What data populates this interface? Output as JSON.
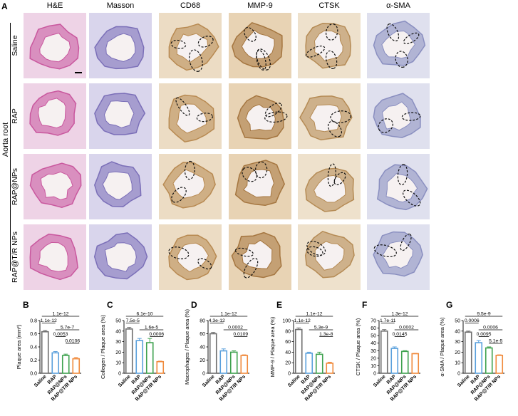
{
  "panel_a": {
    "letter": "A",
    "side_label": "Aorta root",
    "columns": [
      "H&E",
      "Masson",
      "CD68",
      "MMP-9",
      "CTSK",
      "α-SMA"
    ],
    "rows": [
      "Saline",
      "RAP",
      "RAP@NPs",
      "RAP@T/R NPs"
    ],
    "stain_colors": {
      "he": "#c9589e",
      "masson": "#7b6fb8",
      "ihc": "#b88a52",
      "sma": "#8a8fc0"
    }
  },
  "chart_data": [
    {
      "letter": "B",
      "type": "bar",
      "ylabel": "Plaque area (mm²)",
      "categories": [
        "Saline",
        "RAP",
        "RAP@NPs",
        "RAP@T/R NPs"
      ],
      "values": [
        0.63,
        0.31,
        0.27,
        0.22
      ],
      "errors": [
        0.02,
        0.02,
        0.02,
        0.02
      ],
      "ylim": [
        0,
        0.8
      ],
      "ticks": [
        "0.0",
        "0.2",
        "0.4",
        "0.6",
        "0.8"
      ],
      "stats": [
        {
          "label": "1.1e-12",
          "from": 0,
          "to": 3
        },
        {
          "label": "1.1e-12",
          "from": 0,
          "to": 1
        },
        {
          "label": "5.7e-7",
          "from": 1,
          "to": 3
        },
        {
          "label": "0.0053",
          "from": 1,
          "to": 2
        },
        {
          "label": "0.0106",
          "from": 2,
          "to": 3
        }
      ]
    },
    {
      "letter": "C",
      "type": "bar",
      "ylabel": "Collegen / Plaque area (%)",
      "categories": [
        "Saline",
        "RAP",
        "RAP@NPs",
        "RAP@T/R NPs"
      ],
      "values": [
        42,
        31,
        29,
        11
      ],
      "errors": [
        1.5,
        2,
        4,
        0.5
      ],
      "ylim": [
        0,
        50
      ],
      "ticks": [
        "0",
        "10",
        "20",
        "30",
        "40",
        "50"
      ],
      "stats": [
        {
          "label": "6.1e-10",
          "from": 0,
          "to": 3
        },
        {
          "label": "7.5e-5",
          "from": 0,
          "to": 1
        },
        {
          "label": "1.6e-5",
          "from": 1,
          "to": 3
        },
        {
          "label": "0.0006",
          "from": 2,
          "to": 3
        }
      ]
    },
    {
      "letter": "D",
      "type": "bar",
      "ylabel": "Macrophages / Plaque area (%)",
      "categories": [
        "Saline",
        "RAP",
        "RAP@NPs",
        "RAP@T/R NPs"
      ],
      "values": [
        60,
        34,
        32,
        27
      ],
      "errors": [
        2,
        3,
        2,
        1
      ],
      "ylim": [
        0,
        80
      ],
      "ticks": [
        "0",
        "20",
        "40",
        "60",
        "80"
      ],
      "stats": [
        {
          "label": "1.1e-12",
          "from": 0,
          "to": 3
        },
        {
          "label": "4.3e-12",
          "from": 0,
          "to": 1
        },
        {
          "label": "0.0002",
          "from": 1,
          "to": 3
        },
        {
          "label": "0.0109",
          "from": 2,
          "to": 3
        }
      ]
    },
    {
      "letter": "E",
      "type": "bar",
      "ylabel": "MMP-9 / Plaque area (%)",
      "categories": [
        "Saline",
        "RAP",
        "RAP@NPs",
        "RAP@T/R NPs"
      ],
      "values": [
        83,
        38,
        36,
        19
      ],
      "errors": [
        3,
        2,
        4,
        2
      ],
      "ylim": [
        0,
        100
      ],
      "ticks": [
        "0",
        "20",
        "40",
        "60",
        "80",
        "100"
      ],
      "stats": [
        {
          "label": "1.1e-12",
          "from": 0,
          "to": 3
        },
        {
          "label": "1.1e-12",
          "from": 0,
          "to": 1
        },
        {
          "label": "5.3e-9",
          "from": 1,
          "to": 3
        },
        {
          "label": "1.3e-8",
          "from": 2,
          "to": 3
        }
      ]
    },
    {
      "letter": "F",
      "type": "bar",
      "ylabel": "CTSK / Plaque area (%)",
      "categories": [
        "Saline",
        "RAP",
        "RAP@NPs",
        "RAP@T/R NPs"
      ],
      "values": [
        56,
        33,
        29,
        26
      ],
      "errors": [
        2,
        2,
        1,
        0.5
      ],
      "ylim": [
        0,
        70
      ],
      "ticks": [
        "0",
        "10",
        "20",
        "30",
        "40",
        "50",
        "60",
        "70"
      ],
      "stats": [
        {
          "label": "1.3e-12",
          "from": 0,
          "to": 3
        },
        {
          "label": "1.7e-11",
          "from": 0,
          "to": 1
        },
        {
          "label": "0.0002",
          "from": 1,
          "to": 3
        },
        {
          "label": "0.0145",
          "from": 1,
          "to": 2
        }
      ]
    },
    {
      "letter": "G",
      "type": "bar",
      "ylabel": "α-SMA / Plaque area (%)",
      "categories": [
        "Saline",
        "RAP",
        "RAP@NPs",
        "RAP@T/R NPs"
      ],
      "values": [
        39,
        29,
        24,
        17
      ],
      "errors": [
        1,
        2,
        1,
        0.5
      ],
      "ylim": [
        0,
        50
      ],
      "ticks": [
        "0",
        "10",
        "20",
        "30",
        "40",
        "50"
      ],
      "stats": [
        {
          "label": "9.5e-9",
          "from": 0,
          "to": 3
        },
        {
          "label": "0.0006",
          "from": 0,
          "to": 1
        },
        {
          "label": "0.0006",
          "from": 1,
          "to": 3
        },
        {
          "label": "0.0095",
          "from": 1,
          "to": 2
        },
        {
          "label": "5.1e-5",
          "from": 2,
          "to": 3
        }
      ]
    }
  ],
  "bar_colors": [
    "#6e6e6e",
    "#5aa0dc",
    "#3fa24f",
    "#f08a3c"
  ]
}
